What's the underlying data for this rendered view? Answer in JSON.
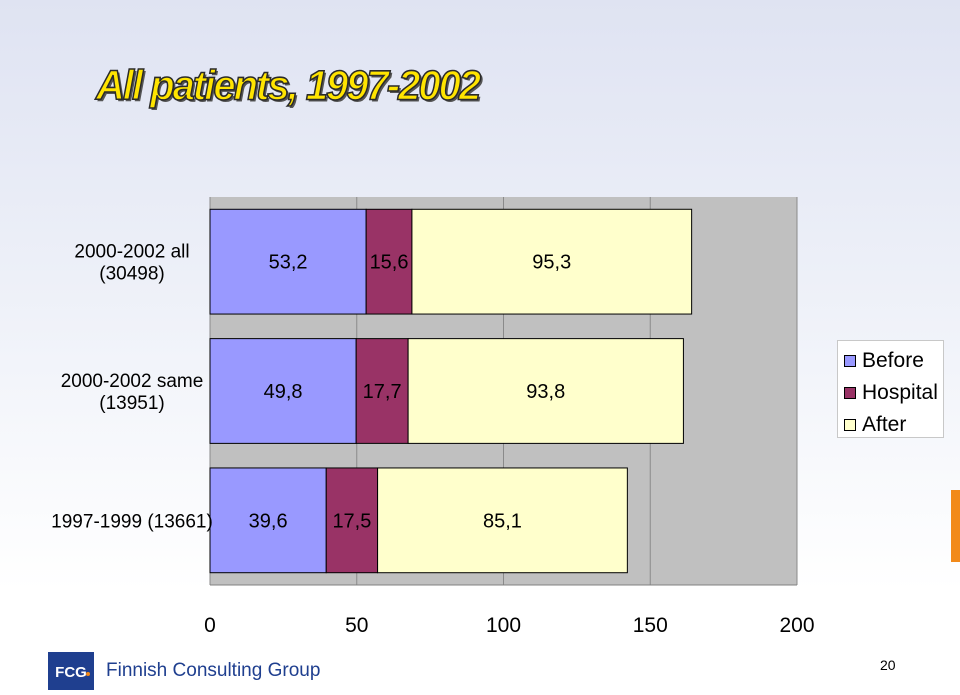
{
  "slide": {
    "title": "All patients, 1997-2002",
    "company_name": "Finnish Consulting Group",
    "logo_text": "FCG",
    "page_number": "20"
  },
  "colors": {
    "before": "#9999ff",
    "hospital": "#993366",
    "after": "#ffffcc",
    "plot_background": "#c0c0c0",
    "accent_orange": "#f28a1a",
    "brand_blue": "#1f3f8f"
  },
  "chart_data": {
    "type": "bar",
    "orientation": "horizontal",
    "stacked": true,
    "categories": [
      "2000-2002 all (30498)",
      "2000-2002 same (13951)",
      "1997-1999 (13661)"
    ],
    "category_lines": [
      [
        "2000-2002 all",
        "(30498)"
      ],
      [
        "2000-2002 same",
        "(13951)"
      ],
      [
        "1997-1999 (13661)"
      ]
    ],
    "series": [
      {
        "name": "Before",
        "values": [
          53.2,
          49.8,
          39.6
        ],
        "labels": [
          "53,2",
          "49,8",
          "39,6"
        ],
        "color": "#9999ff"
      },
      {
        "name": "Hospital",
        "values": [
          15.6,
          17.7,
          17.5
        ],
        "labels": [
          "15,6",
          "17,7",
          "17,5"
        ],
        "color": "#993366"
      },
      {
        "name": "After",
        "values": [
          95.3,
          93.8,
          85.1
        ],
        "labels": [
          "95,3",
          "93,8",
          "85,1"
        ],
        "color": "#ffffcc"
      }
    ],
    "xlim": [
      0,
      200
    ],
    "xticks": [
      0,
      50,
      100,
      150,
      200
    ],
    "xtick_labels": [
      "0",
      "50",
      "100",
      "150",
      "200"
    ],
    "grid": true,
    "legend_position": "right"
  }
}
